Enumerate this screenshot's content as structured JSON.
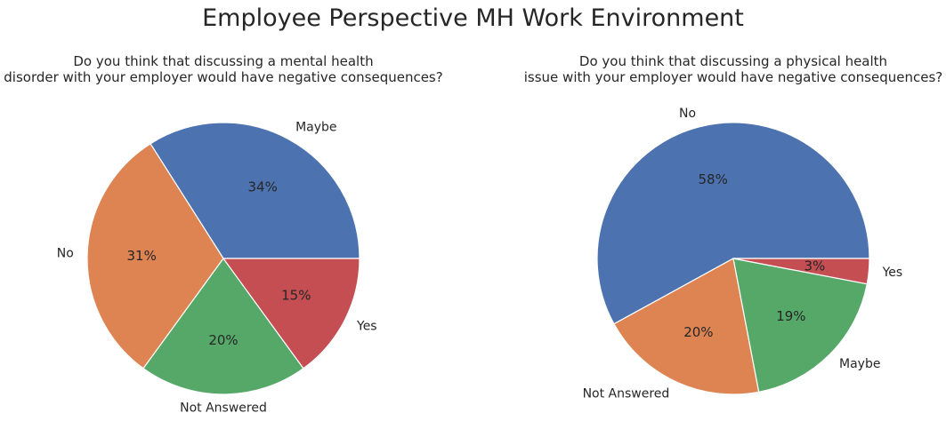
{
  "suptitle": "Employee Perspective MH Work Environment",
  "chart_data": [
    {
      "type": "pie",
      "title_lines": [
        "Do you think that discussing a mental health",
        "disorder with your employer would have negative consequences?"
      ],
      "start_angle_deg": 0,
      "direction": "counterclockwise",
      "slices": [
        {
          "label": "Maybe",
          "value": 34,
          "pct_label": "34%",
          "color": "#4c72b0"
        },
        {
          "label": "No",
          "value": 31,
          "pct_label": "31%",
          "color": "#dd8452"
        },
        {
          "label": "Not Answered",
          "value": 20,
          "pct_label": "20%",
          "color": "#55a868"
        },
        {
          "label": "Yes",
          "value": 15,
          "pct_label": "15%",
          "color": "#c44e52"
        }
      ]
    },
    {
      "type": "pie",
      "title_lines": [
        "Do you think that discussing a physical health",
        "issue with your employer would have negative consequences?"
      ],
      "start_angle_deg": 0,
      "direction": "counterclockwise",
      "slices": [
        {
          "label": "No",
          "value": 58,
          "pct_label": "58%",
          "color": "#4c72b0"
        },
        {
          "label": "Not Answered",
          "value": 20,
          "pct_label": "20%",
          "color": "#dd8452"
        },
        {
          "label": "Maybe",
          "value": 19,
          "pct_label": "19%",
          "color": "#55a868"
        },
        {
          "label": "Yes",
          "value": 3,
          "pct_label": "3%",
          "color": "#c44e52"
        }
      ]
    }
  ]
}
